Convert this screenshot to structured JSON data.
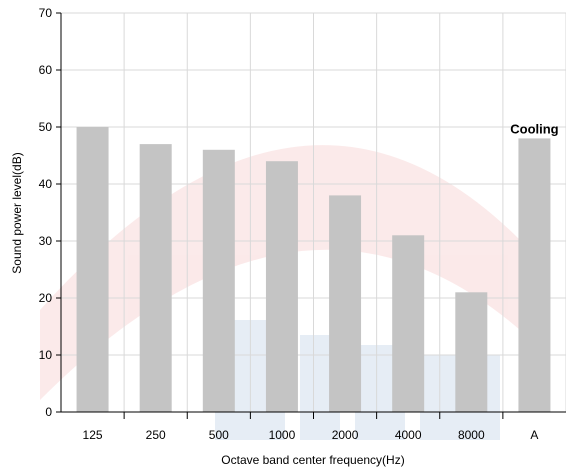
{
  "chart_data": {
    "type": "bar",
    "categories": [
      "125",
      "250",
      "500",
      "1000",
      "2000",
      "4000",
      "8000",
      "A"
    ],
    "values": [
      50,
      47,
      46,
      44,
      38,
      31,
      21,
      48
    ],
    "xlabel": "Octave band center frequency(Hz)",
    "ylabel": "Sound power level(dB)",
    "ylim": [
      0,
      70
    ],
    "yticks": [
      0,
      10,
      20,
      30,
      40,
      50,
      60,
      70
    ],
    "grid": true,
    "bar_color": "#c4c4c4",
    "grid_color": "#d9d9d9",
    "annotation": {
      "text": "Cooling",
      "category": "A"
    }
  }
}
